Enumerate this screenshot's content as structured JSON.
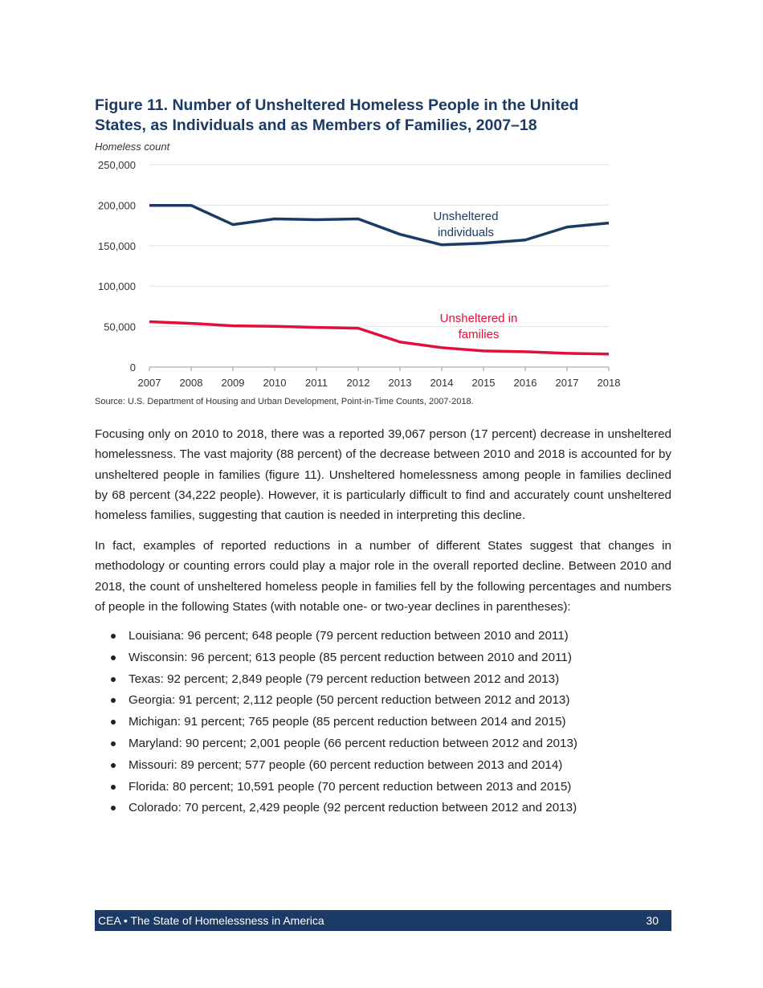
{
  "figure": {
    "title": "Figure 11. Number of Unsheltered Homeless People in the United States, as Individuals and as Members of Families, 2007–18",
    "source": "Source: U.S. Department of Housing and Urban Development, Point-in-Time Counts, 2007-2018."
  },
  "chart_data": {
    "type": "line",
    "title": "Figure 11. Number of Unsheltered Homeless People in the United States, as Individuals and as Members of Families, 2007–18",
    "ylabel": "Homeless count",
    "xlabel": "",
    "x": [
      2007,
      2008,
      2009,
      2010,
      2011,
      2012,
      2013,
      2014,
      2015,
      2016,
      2017,
      2018
    ],
    "ylim": [
      0,
      250000
    ],
    "yticks": [
      "0",
      "50,000",
      "100,000",
      "150,000",
      "200,000",
      "250,000"
    ],
    "grid": true,
    "series": [
      {
        "name": "Unsheltered individuals",
        "color": "#1b3a66",
        "values": [
          199700,
          199700,
          176000,
          183000,
          182000,
          183000,
          164000,
          151000,
          153000,
          157000,
          173000,
          178000
        ]
      },
      {
        "name": "Unsheltered in families",
        "color": "#e0103a",
        "values": [
          56000,
          54000,
          51000,
          50300,
          49000,
          48000,
          31000,
          24000,
          20000,
          19000,
          17000,
          16100
        ]
      }
    ],
    "labels": [
      {
        "series": 0,
        "lines": [
          "Unsheltered",
          "individuals"
        ]
      },
      {
        "series": 1,
        "lines": [
          "Unsheltered in",
          "families"
        ]
      }
    ]
  },
  "paragraphs": [
    "Focusing only on 2010 to 2018, there was a reported 39,067 person (17 percent) decrease in unsheltered homelessness. The vast majority (88 percent) of the decrease between 2010 and 2018 is accounted for by unsheltered people in families (figure 11). Unsheltered homelessness among people in families declined by 68 percent (34,222 people). However, it is particularly difficult to find and accurately count unsheltered homeless families, suggesting that caution is needed in interpreting this decline.",
    "In fact, examples of reported reductions in a number of different States suggest that changes in methodology or counting errors could play a major role in the overall reported decline. Between 2010 and 2018, the count of unsheltered homeless people in families fell by the following percentages and numbers of people in the following States (with notable one- or two-year declines in parentheses):"
  ],
  "bullets": [
    "Louisiana: 96 percent; 648 people (79 percent reduction between 2010 and 2011)",
    "Wisconsin: 96 percent; 613 people (85 percent reduction between 2010 and 2011)",
    "Texas: 92 percent; 2,849 people (79 percent reduction between 2012 and 2013)",
    "Georgia: 91 percent; 2,112 people (50 percent reduction between 2012 and 2013)",
    "Michigan: 91 percent; 765 people (85 percent reduction between 2014 and 2015)",
    "Maryland: 90 percent; 2,001 people (66 percent reduction between 2012 and 2013)",
    "Missouri: 89 percent; 577 people (60 percent reduction between 2013 and 2014)",
    "Florida: 80 percent; 10,591 people (70 percent reduction between 2013 and 2015)",
    "Colorado: 70 percent, 2,429 people (92 percent reduction between 2012 and 2013)"
  ],
  "footer": {
    "left": "CEA • The State of Homelessness in America",
    "page": "30"
  }
}
